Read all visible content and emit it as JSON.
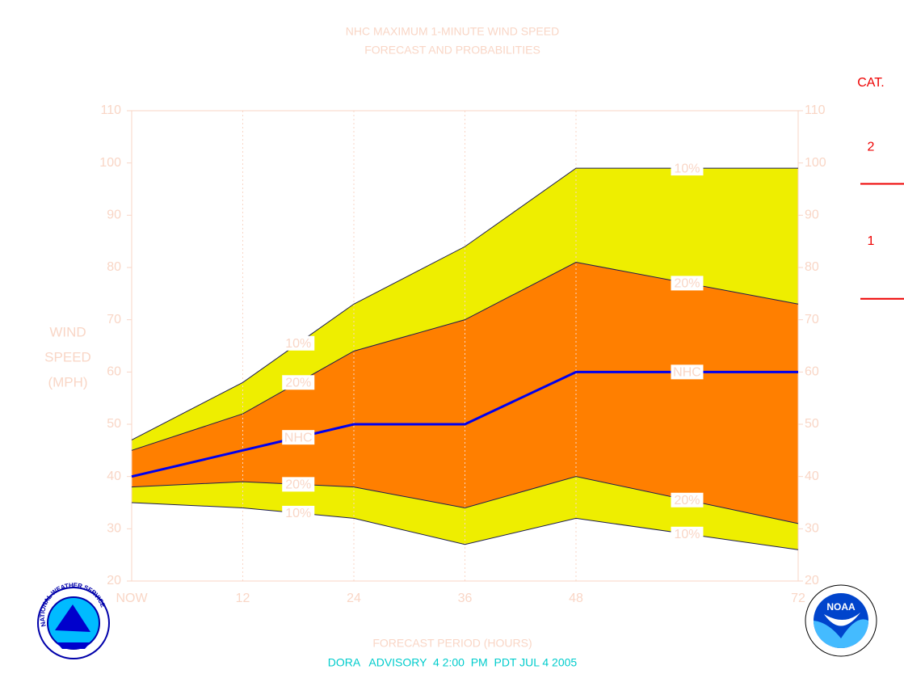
{
  "chart_data": {
    "type": "probability-band",
    "title": "NHC MAXIMUM 1-MINUTE WIND SPEED",
    "subtitle": "FORECAST AND PROBABILITIES",
    "y_label": [
      "WIND",
      "SPEED",
      "(MPH)"
    ],
    "x_label": "FORECAST PERIOD (HOURS)",
    "footer": "DORA   ADVISORY  4 2:00  PM  PDT JUL 4 2005",
    "x": [
      0,
      12,
      24,
      36,
      48,
      72
    ],
    "xlim": [
      0,
      72
    ],
    "xticks": [
      {
        "value": 0,
        "label": "NOW"
      },
      12,
      24,
      36,
      48,
      72
    ],
    "ylim": [
      20,
      110
    ],
    "yticks": [
      20,
      30,
      40,
      50,
      60,
      70,
      80,
      90,
      100,
      110
    ],
    "grid": true,
    "series": [
      {
        "name": "10%",
        "color": "#1c1c50",
        "fill": "#eeee00",
        "values": [
          47,
          58,
          73,
          84,
          99,
          99
        ]
      },
      {
        "name": "20%",
        "color": "#1c1c50",
        "fill": "#ff7f00",
        "values": [
          45,
          52,
          64,
          70,
          81,
          73
        ]
      },
      {
        "name": "NHC",
        "color": "#0000ee",
        "values": [
          40,
          45,
          50,
          50,
          60,
          60
        ]
      },
      {
        "name": "20%",
        "color": "#1c1c50",
        "values": [
          38,
          39,
          38,
          34,
          40,
          31
        ]
      },
      {
        "name": "10%",
        "color": "#1c1c50",
        "values": [
          35,
          34,
          32,
          27,
          32,
          26
        ]
      }
    ],
    "category_scale": {
      "title": "CAT.",
      "color": "#ee0000",
      "labels": [
        "1",
        "2"
      ],
      "thresholds": [
        74,
        96
      ]
    },
    "logos": {
      "nws": "NATIONAL WEATHER SERVICE",
      "noaa": "NOAA"
    }
  }
}
